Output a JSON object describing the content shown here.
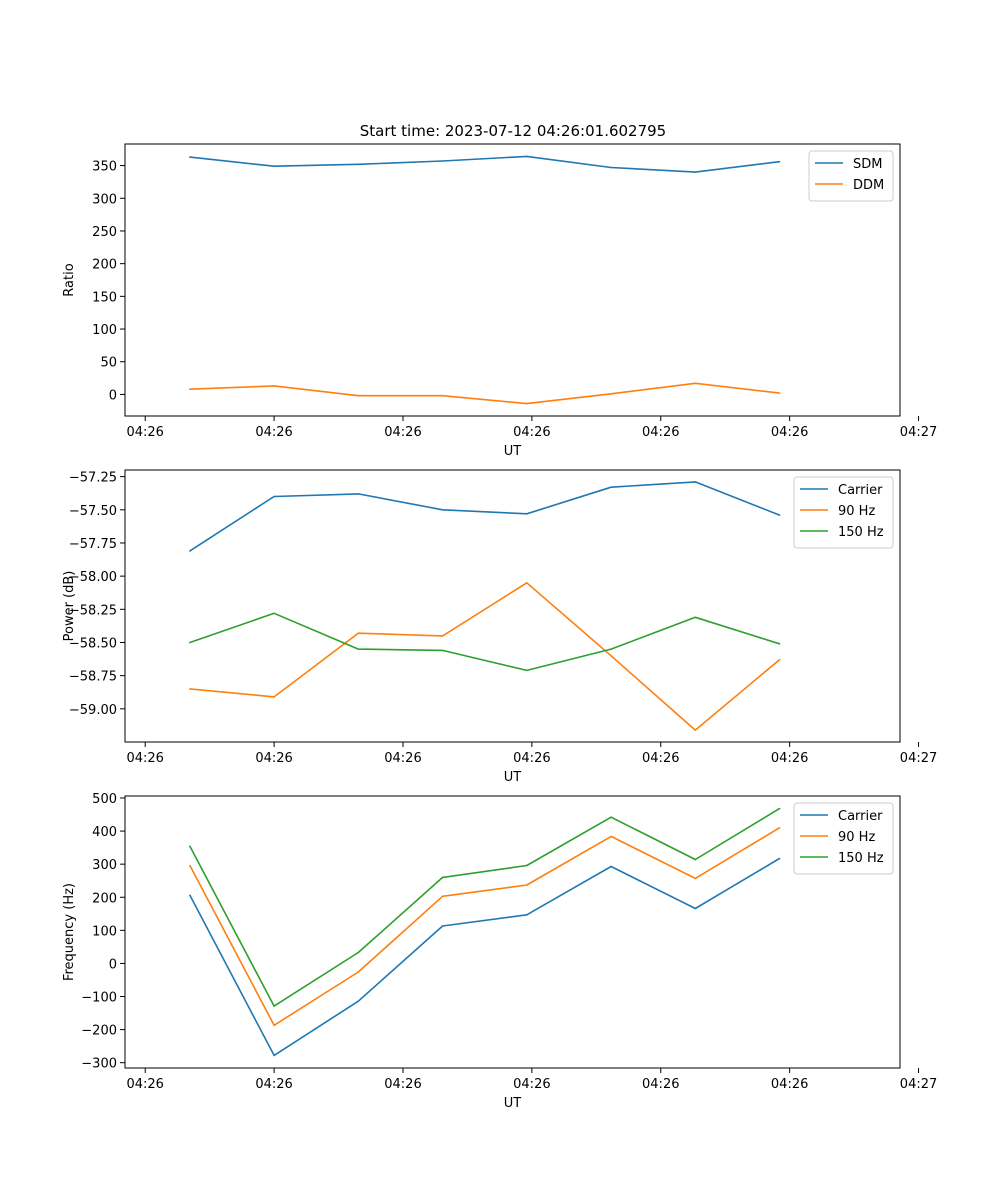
{
  "figure": {
    "title": "Start time: 2023-07-12 04:26:01.602795"
  },
  "chart_data": [
    {
      "type": "line",
      "title": "Start time: 2023-07-12 04:26:01.602795",
      "xlabel": "UT",
      "ylabel": "Ratio",
      "x": [
        1,
        2,
        3,
        4,
        5,
        6,
        7,
        8
      ],
      "xlim": [
        0.23,
        9.43
      ],
      "xticks": [
        {
          "value": 0.47,
          "label": "04:26"
        },
        {
          "value": 2.0,
          "label": "04:26"
        },
        {
          "value": 3.53,
          "label": "04:26"
        },
        {
          "value": 5.06,
          "label": "04:26"
        },
        {
          "value": 6.59,
          "label": "04:26"
        },
        {
          "value": 8.12,
          "label": "04:26"
        },
        {
          "value": 9.65,
          "label": "04:27"
        }
      ],
      "ylim": [
        -33,
        383
      ],
      "yticks": [
        0,
        50,
        100,
        150,
        200,
        250,
        300,
        350
      ],
      "legend": "top-right",
      "series": [
        {
          "name": "SDM",
          "color": "#1f77b4",
          "values": [
            363,
            349,
            352,
            357,
            364,
            347,
            340,
            356
          ]
        },
        {
          "name": "DDM",
          "color": "#ff7f0e",
          "values": [
            8,
            13,
            -2,
            -2,
            -14,
            1,
            17,
            2
          ]
        }
      ]
    },
    {
      "type": "line",
      "title": "",
      "xlabel": "UT",
      "ylabel": "Power (dB)",
      "x": [
        1,
        2,
        3,
        4,
        5,
        6,
        7,
        8
      ],
      "xlim": [
        0.23,
        9.43
      ],
      "xticks": [
        {
          "value": 0.47,
          "label": "04:26"
        },
        {
          "value": 2.0,
          "label": "04:26"
        },
        {
          "value": 3.53,
          "label": "04:26"
        },
        {
          "value": 5.06,
          "label": "04:26"
        },
        {
          "value": 6.59,
          "label": "04:26"
        },
        {
          "value": 8.12,
          "label": "04:26"
        },
        {
          "value": 9.65,
          "label": "04:27"
        }
      ],
      "ylim": [
        -59.25,
        -57.2
      ],
      "yticks": [
        -59.0,
        -58.75,
        -58.5,
        -58.25,
        -58.0,
        -57.75,
        -57.5,
        -57.25
      ],
      "ytick_labels": [
        "−59.00",
        "−58.75",
        "−58.50",
        "−58.25",
        "−58.00",
        "−57.75",
        "−57.50",
        "−57.25"
      ],
      "legend": "top-right",
      "series": [
        {
          "name": "Carrier",
          "color": "#1f77b4",
          "values": [
            -57.81,
            -57.4,
            -57.38,
            -57.5,
            -57.53,
            -57.33,
            -57.29,
            -57.54
          ]
        },
        {
          "name": "90 Hz",
          "color": "#ff7f0e",
          "values": [
            -58.85,
            -58.91,
            -58.43,
            -58.45,
            -58.05,
            -58.6,
            -59.16,
            -58.63
          ]
        },
        {
          "name": "150 Hz",
          "color": "#2ca02c",
          "values": [
            -58.5,
            -58.28,
            -58.55,
            -58.56,
            -58.71,
            -58.55,
            -58.31,
            -58.51
          ]
        }
      ]
    },
    {
      "type": "line",
      "title": "",
      "xlabel": "UT",
      "ylabel": "Frequency (Hz)",
      "x": [
        1,
        2,
        3,
        4,
        5,
        6,
        7,
        8
      ],
      "xlim": [
        0.23,
        9.43
      ],
      "xticks": [
        {
          "value": 0.47,
          "label": "04:26"
        },
        {
          "value": 2.0,
          "label": "04:26"
        },
        {
          "value": 3.53,
          "label": "04:26"
        },
        {
          "value": 5.06,
          "label": "04:26"
        },
        {
          "value": 6.59,
          "label": "04:26"
        },
        {
          "value": 8.12,
          "label": "04:26"
        },
        {
          "value": 9.65,
          "label": "04:27"
        }
      ],
      "ylim": [
        -316,
        506
      ],
      "yticks": [
        -300,
        -200,
        -100,
        0,
        100,
        200,
        300,
        400,
        500
      ],
      "ytick_labels": [
        "−300",
        "−200",
        "−100",
        "0",
        "100",
        "200",
        "300",
        "400",
        "500"
      ],
      "legend": "top-right",
      "series": [
        {
          "name": "Carrier",
          "color": "#1f77b4",
          "values": [
            206,
            -278,
            -114,
            113,
            147,
            293,
            166,
            317
          ]
        },
        {
          "name": "90 Hz",
          "color": "#ff7f0e",
          "values": [
            296,
            -187,
            -26,
            203,
            237,
            384,
            257,
            410
          ]
        },
        {
          "name": "150 Hz",
          "color": "#2ca02c",
          "values": [
            354,
            -129,
            33,
            260,
            296,
            442,
            314,
            468
          ]
        }
      ]
    }
  ]
}
